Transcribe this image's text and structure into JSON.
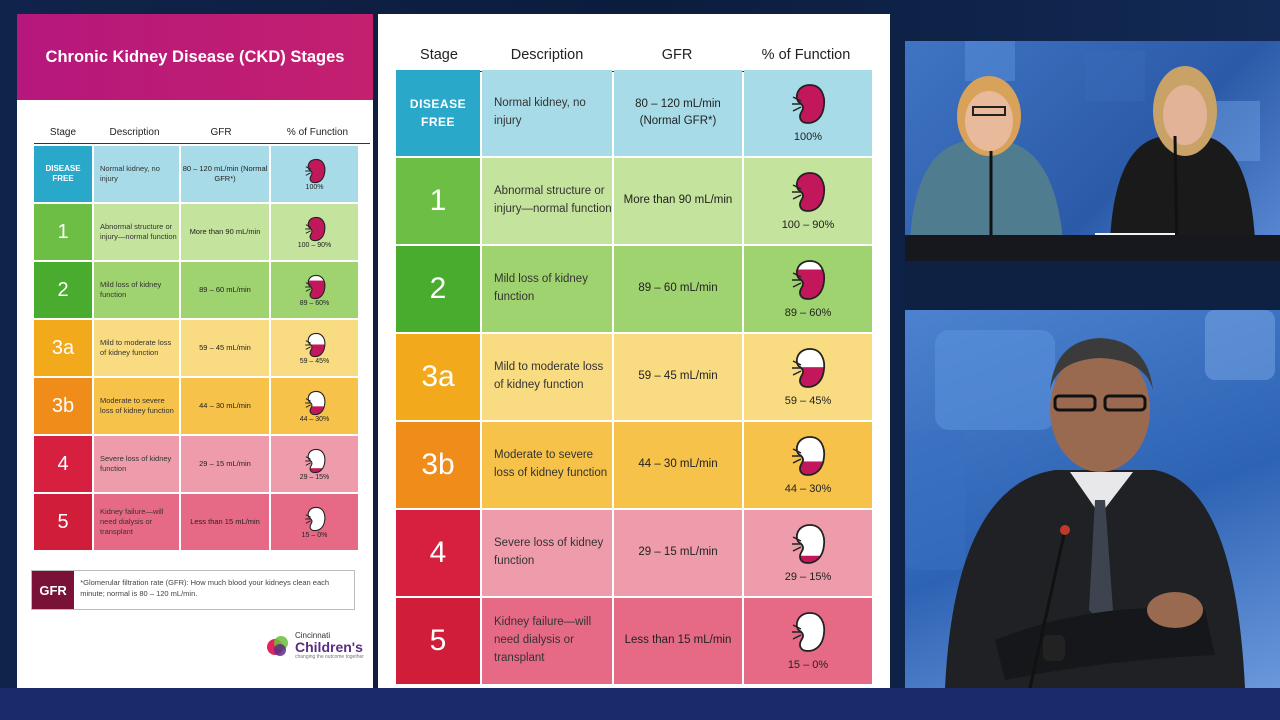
{
  "poster": {
    "title": "Chronic Kidney Disease (CKD) Stages",
    "headers": {
      "stage": "Stage",
      "description": "Description",
      "gfr": "GFR",
      "function": "% of Function"
    },
    "rows": [
      {
        "stage": "DISEASE FREE",
        "description": "Normal kidney, no injury",
        "gfr": "80 – 120 mL/min (Normal GFR*)",
        "function": "100%",
        "fill": 1.0,
        "stage_color": "#2aa8c9",
        "row_color": "#a8dbe8"
      },
      {
        "stage": "1",
        "description": "Abnormal structure or injury—normal function",
        "gfr": "More than 90 mL/min",
        "function": "100 – 90%",
        "fill": 0.95,
        "stage_color": "#6cbf44",
        "row_color": "#c4e39c"
      },
      {
        "stage": "2",
        "description": "Mild loss of kidney function",
        "gfr": "89 – 60 mL/min",
        "function": "89 – 60%",
        "fill": 0.75,
        "stage_color": "#4aac2f",
        "row_color": "#9fd36f"
      },
      {
        "stage": "3a",
        "description": "Mild to moderate loss of kidney function",
        "gfr": "59 – 45 mL/min",
        "function": "59 – 45%",
        "fill": 0.52,
        "stage_color": "#f2a91c",
        "row_color": "#f9dc82"
      },
      {
        "stage": "3b",
        "description": "Moderate to severe loss of kidney function",
        "gfr": "44 – 30 mL/min",
        "function": "44 – 30%",
        "fill": 0.37,
        "stage_color": "#ef8c1a",
        "row_color": "#f6c24a"
      },
      {
        "stage": "4",
        "description": "Severe loss of kidney function",
        "gfr": "29 – 15 mL/min",
        "function": "29 – 15%",
        "fill": 0.22,
        "stage_color": "#d71f3f",
        "row_color": "#ee9cab"
      },
      {
        "stage": "5",
        "description": "Kidney failure—will need dialysis or transplant",
        "gfr": "Less than 15 mL/min",
        "function": "15 – 0%",
        "fill": 0.07,
        "stage_color": "#d01d3a",
        "row_color": "#e66a86"
      }
    ],
    "gfr_box": {
      "label": "GFR",
      "text": "*Glomerular filtration rate (GFR): How much blood your kidneys clean each minute; normal is 80 – 120 mL/min."
    },
    "logo": {
      "line1": "Cincinnati",
      "line2": "Children's",
      "line3": "changing the outcome together"
    }
  },
  "main_table": {
    "headers": {
      "stage": "Stage",
      "description": "Description",
      "gfr": "GFR",
      "function": "% of Function"
    },
    "rows": [
      {
        "stage": "DISEASE FREE",
        "description": "Normal kidney, no injury",
        "gfr": "80 – 120 mL/min (Normal GFR*)",
        "function": "100%",
        "fill": 1.0,
        "stage_color": "#2aa8c9",
        "row_color": "#a8dbe8"
      },
      {
        "stage": "1",
        "description": "Abnormal structure or injury—normal function",
        "gfr": "More than 90 mL/min",
        "function": "100 – 90%",
        "fill": 0.95,
        "stage_color": "#6cbf44",
        "row_color": "#c4e39c"
      },
      {
        "stage": "2",
        "description": "Mild loss of kidney function",
        "gfr": "89 – 60 mL/min",
        "function": "89 – 60%",
        "fill": 0.75,
        "stage_color": "#4aac2f",
        "row_color": "#9fd36f"
      },
      {
        "stage": "3a",
        "description": "Mild to moderate loss of kidney function",
        "gfr": "59 – 45 mL/min",
        "function": "59 – 45%",
        "fill": 0.52,
        "stage_color": "#f2a91c",
        "row_color": "#f9dc82"
      },
      {
        "stage": "3b",
        "description": "Moderate to severe loss of kidney function",
        "gfr": "44 – 30 mL/min",
        "function": "44 – 30%",
        "fill": 0.37,
        "stage_color": "#ef8c1a",
        "row_color": "#f6c24a"
      },
      {
        "stage": "4",
        "description": "Severe loss of kidney function",
        "gfr": "29 – 15 mL/min",
        "function": "29 – 15%",
        "fill": 0.22,
        "stage_color": "#d71f3f",
        "row_color": "#ee9cab"
      },
      {
        "stage": "5",
        "description": "Kidney failure—will need dialysis or transplant",
        "gfr": "Less than 15 mL/min",
        "function": "15 – 0%",
        "fill": 0.07,
        "stage_color": "#d01d3a",
        "row_color": "#e66a86"
      }
    ]
  },
  "colors": {
    "kidney": "#c2185b",
    "kidney_empty": "#ffffff",
    "header_magenta": "#b5177c"
  },
  "videos": [
    {
      "name": "presenters-top",
      "icon": "two-presenters"
    },
    {
      "name": "presenter-bottom",
      "icon": "single-presenter"
    }
  ]
}
